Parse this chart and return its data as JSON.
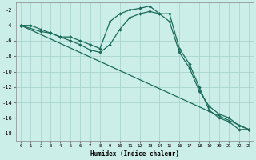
{
  "xlabel": "Humidex (Indice chaleur)",
  "bg_color": "#cceee8",
  "grid_color": "#aad4ce",
  "line_color": "#1a6b5a",
  "xlim": [
    -0.5,
    23.5
  ],
  "ylim": [
    -19,
    -1
  ],
  "xticks": [
    0,
    1,
    2,
    3,
    4,
    5,
    6,
    7,
    8,
    9,
    10,
    11,
    12,
    13,
    14,
    15,
    16,
    17,
    18,
    19,
    20,
    21,
    22,
    23
  ],
  "yticks": [
    -18,
    -16,
    -14,
    -12,
    -10,
    -8,
    -6,
    -4,
    -2
  ],
  "line1_x": [
    0,
    1,
    2,
    3,
    4,
    5,
    6,
    7,
    8,
    9,
    10,
    11,
    12,
    13,
    14,
    15,
    16,
    17,
    18,
    19,
    20,
    21,
    22,
    23
  ],
  "line1_y": [
    -4,
    -4,
    -4.5,
    -5,
    -5.5,
    -5.5,
    -6,
    -6.5,
    -7,
    -3.5,
    -2.5,
    -2.0,
    -1.8,
    -1.5,
    -2.5,
    -2.5,
    -7.0,
    -9.0,
    -12.0,
    -15.0,
    -16.0,
    -16.5,
    -17.5,
    -17.5
  ],
  "line2_x": [
    0,
    2,
    3,
    4,
    5,
    6,
    7,
    8,
    9,
    10,
    11,
    12,
    13,
    14,
    15,
    16,
    17,
    18,
    19,
    20,
    21,
    22,
    23
  ],
  "line2_y": [
    -4,
    -4.8,
    -5.0,
    -5.5,
    -6.0,
    -6.5,
    -7.2,
    -7.5,
    -6.5,
    -4.5,
    -3.0,
    -2.5,
    -2.2,
    -2.5,
    -3.5,
    -7.5,
    -9.5,
    -12.5,
    -14.5,
    -15.5,
    -16.0,
    -17.0,
    -17.5
  ],
  "line3_x": [
    0,
    23
  ],
  "line3_y": [
    -4,
    -17.5
  ]
}
